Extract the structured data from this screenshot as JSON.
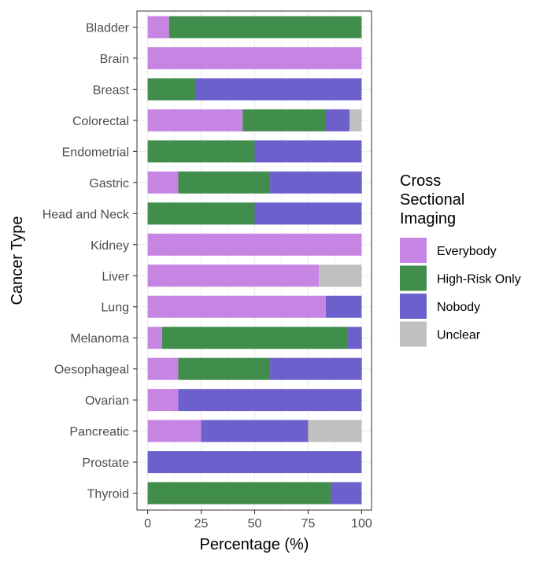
{
  "chart_data": {
    "type": "bar",
    "orientation": "horizontal",
    "stacked": true,
    "title": "",
    "xlabel": "Percentage (%)",
    "ylabel": "Cancer Type",
    "xlim": [
      0,
      100
    ],
    "xticks": [
      0,
      25,
      50,
      75,
      100
    ],
    "grid": true,
    "legend_title": [
      "Cross",
      "Sectional",
      "Imaging"
    ],
    "legend_position": "right",
    "categories": [
      "Bladder",
      "Brain",
      "Breast",
      "Colorectal",
      "Endometrial",
      "Gastric",
      "Head and Neck",
      "Kidney",
      "Liver",
      "Lung",
      "Melanoma",
      "Oesophageal",
      "Ovarian",
      "Pancreatic",
      "Prostate",
      "Thyroid"
    ],
    "series": [
      {
        "name": "Everybody",
        "color": "#c685e3",
        "values": [
          10,
          100,
          0,
          44.4,
          0,
          14.3,
          0,
          100,
          80,
          83.3,
          6.7,
          14.3,
          14.3,
          25,
          0,
          0
        ]
      },
      {
        "name": "High-Risk Only",
        "color": "#418e4c",
        "values": [
          90,
          0,
          22.2,
          38.9,
          50,
          42.9,
          50,
          0,
          0,
          0,
          86.7,
          42.9,
          0,
          0,
          0,
          85.7
        ]
      },
      {
        "name": "Nobody",
        "color": "#6c61cc",
        "values": [
          0,
          0,
          77.8,
          11.1,
          50,
          42.9,
          50,
          0,
          0,
          16.7,
          6.7,
          42.9,
          85.7,
          50,
          100,
          14.3
        ]
      },
      {
        "name": "Unclear",
        "color": "#c0c0c0",
        "values": [
          0,
          0,
          0,
          5.6,
          0,
          0,
          0,
          0,
          20,
          0,
          0,
          0,
          0,
          25,
          0,
          0
        ]
      }
    ]
  }
}
